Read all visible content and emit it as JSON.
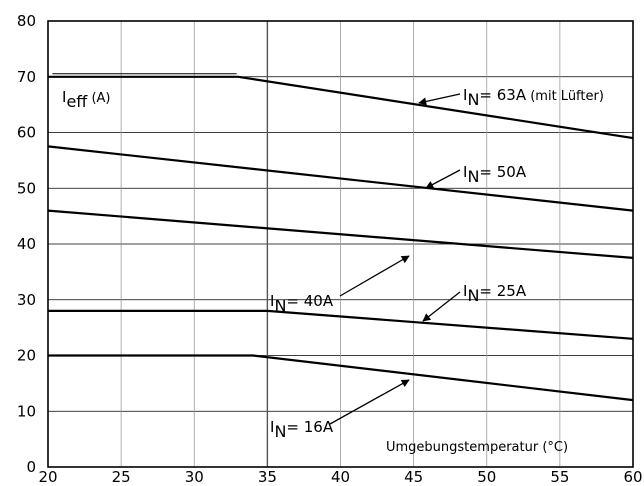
{
  "chart_data": {
    "type": "line",
    "title": "",
    "ylabel": {
      "main": "I",
      "sub": "eff",
      "unit": " (A)"
    },
    "xlabel": "Umgebungstemperatur (°C)",
    "xlim": [
      20,
      60
    ],
    "ylim": [
      0,
      80
    ],
    "xticks": [
      20,
      25,
      30,
      35,
      40,
      45,
      50,
      55,
      60
    ],
    "yticks": [
      0,
      10,
      20,
      30,
      40,
      50,
      60,
      70,
      80
    ],
    "grid": true,
    "vertical_marker_x": 35,
    "series": [
      {
        "name": "IN= 63A (mit Lüfter)",
        "x": [
          20,
          33,
          60
        ],
        "y": [
          70,
          70,
          59
        ]
      },
      {
        "name": "IN= 50A",
        "x": [
          20,
          60
        ],
        "y": [
          57.5,
          46
        ]
      },
      {
        "name": "IN= 40A",
        "x": [
          20,
          60
        ],
        "y": [
          46,
          37.5
        ]
      },
      {
        "name": "IN= 25A",
        "x": [
          20,
          35,
          60
        ],
        "y": [
          28,
          28,
          23
        ]
      },
      {
        "name": "IN= 16A",
        "x": [
          20,
          34,
          60
        ],
        "y": [
          20,
          20,
          12
        ]
      }
    ],
    "annotations": [
      {
        "main": "I",
        "sub": "N",
        "text": "= 63A",
        "small": " (mit Lüfter)"
      },
      {
        "main": "I",
        "sub": "N",
        "text": "= 50A",
        "small": ""
      },
      {
        "main": "I",
        "sub": "N",
        "text": "= 40A",
        "small": ""
      },
      {
        "main": "I",
        "sub": "N",
        "text": "= 25A",
        "small": ""
      },
      {
        "main": "I",
        "sub": "N",
        "text": "= 16A",
        "small": ""
      }
    ]
  }
}
